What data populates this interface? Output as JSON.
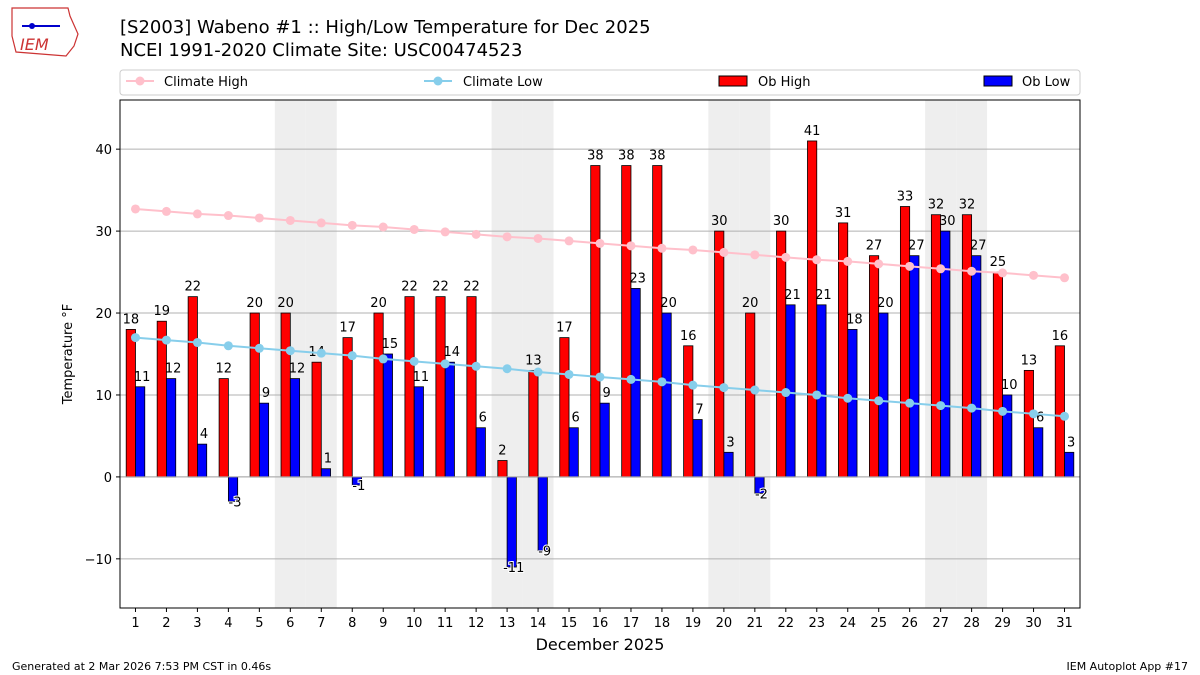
{
  "header": {
    "title_line1": "[S2003] Wabeno #1 :: High/Low Temperature for Dec 2025",
    "title_line2": "NCEI 1991-2020 Climate Site: USC00474523",
    "logo_text": "IEM"
  },
  "footer": {
    "left": "Generated at 2 Mar 2026 7:53 PM CST in 0.46s",
    "right": "IEM Autoplot App #17"
  },
  "colors": {
    "ob_high": "#ff0000",
    "ob_low": "#0000ff",
    "climate_high": "#ffc0cb",
    "climate_low": "#87ceeb",
    "weekend": "#eeeeee"
  },
  "chart_data": {
    "type": "bar",
    "xlabel": "December 2025",
    "ylabel": "Temperature °F",
    "ylim": [
      -16,
      46
    ],
    "yticks": [
      -10,
      0,
      10,
      20,
      30,
      40
    ],
    "grid": true,
    "legend": "top",
    "legend_entries": [
      "Climate High",
      "Climate Low",
      "Ob High",
      "Ob Low"
    ],
    "days": [
      1,
      2,
      3,
      4,
      5,
      6,
      7,
      8,
      9,
      10,
      11,
      12,
      13,
      14,
      15,
      16,
      17,
      18,
      19,
      20,
      21,
      22,
      23,
      24,
      25,
      26,
      27,
      28,
      29,
      30,
      31
    ],
    "weekend_days": [
      6,
      7,
      13,
      14,
      20,
      21,
      27,
      28
    ],
    "series": [
      {
        "name": "Ob High",
        "type": "bar",
        "values": [
          18,
          19,
          22,
          12,
          20,
          20,
          14,
          17,
          20,
          22,
          22,
          22,
          2,
          13,
          17,
          38,
          38,
          38,
          16,
          30,
          20,
          30,
          41,
          31,
          27,
          33,
          32,
          32,
          25,
          13,
          16
        ]
      },
      {
        "name": "Ob Low",
        "type": "bar",
        "values": [
          11,
          12,
          4,
          -3,
          9,
          12,
          1,
          -1,
          15,
          11,
          14,
          6,
          -11,
          -9,
          6,
          9,
          23,
          20,
          7,
          3,
          -2,
          21,
          21,
          18,
          20,
          27,
          30,
          27,
          10,
          6,
          3
        ]
      },
      {
        "name": "Climate High",
        "type": "line",
        "values": [
          32.7,
          32.4,
          32.1,
          31.9,
          31.6,
          31.3,
          31.0,
          30.7,
          30.5,
          30.2,
          29.9,
          29.6,
          29.3,
          29.1,
          28.8,
          28.5,
          28.2,
          27.9,
          27.7,
          27.4,
          27.1,
          26.8,
          26.5,
          26.3,
          26.0,
          25.7,
          25.4,
          25.1,
          24.9,
          24.6,
          24.3
        ]
      },
      {
        "name": "Climate Low",
        "type": "line",
        "values": [
          17.0,
          16.7,
          16.4,
          16.0,
          15.7,
          15.4,
          15.1,
          14.8,
          14.4,
          14.1,
          13.8,
          13.5,
          13.2,
          12.8,
          12.5,
          12.2,
          11.9,
          11.6,
          11.2,
          10.9,
          10.6,
          10.3,
          10.0,
          9.6,
          9.3,
          9.0,
          8.7,
          8.4,
          8.0,
          7.7,
          7.4
        ]
      }
    ]
  }
}
